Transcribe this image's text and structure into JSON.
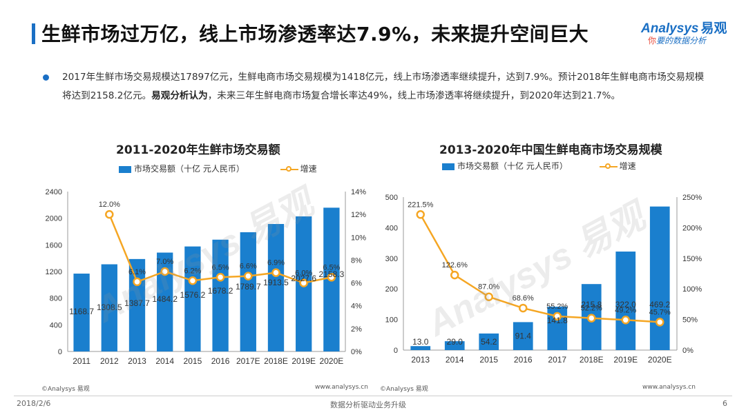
{
  "header": {
    "title": "生鲜市场过万亿，线上市场渗透率达7.9%，未来提升空间巨大",
    "logo_brand": "nalysys",
    "logo_brand_initial": "A",
    "logo_brand_cn": "易观",
    "logo_slogan_accent": "你",
    "logo_slogan": "要的数据分析"
  },
  "summary": {
    "part1": "2017年生鲜市场交易规模达17897亿元，生鲜电商市场交易规模为1418亿元，线上市场渗透率继续提升，达到7.9%。预计2018年生鲜电商市场交易规模将达到2158.2亿元。",
    "bold": "易观分析认为",
    "part2": "，未来三年生鲜电商市场复合增长率达49%，线上市场渗透率将继续提升，到2020年达到21.7%。"
  },
  "watermark": {
    "text": "Analysys 易观"
  },
  "chart_data": [
    {
      "type": "bar",
      "title": "2011-2020年生鲜市场交易额",
      "categories": [
        "2011",
        "2012",
        "2013",
        "2014",
        "2015",
        "2016",
        "2017E",
        "2018E",
        "2019E",
        "2020E"
      ],
      "series": [
        {
          "name": "市场交易额（十亿 元人民币）",
          "kind": "bar",
          "values": [
            1168.7,
            1308.5,
            1387.7,
            1484.2,
            1576.2,
            1678.2,
            1789.7,
            1913.5,
            2027.6,
            2158.3
          ],
          "labels": [
            "1168.7",
            "1308.5",
            "1387.7",
            "1484.2",
            "1576.2",
            "1678.2",
            "1789.7",
            "1913.5",
            "2027.6",
            "2158.3"
          ]
        },
        {
          "name": "增速",
          "kind": "line",
          "values": [
            null,
            12.0,
            6.1,
            7.0,
            6.2,
            6.5,
            6.6,
            6.9,
            6.0,
            6.5
          ],
          "labels": [
            "",
            "12.0%",
            "6.1%",
            "7.0%",
            "6.2%",
            "6.5%",
            "6.6%",
            "6.9%",
            "6.0%",
            "6.5%"
          ]
        }
      ],
      "ylim": [
        0,
        2400
      ],
      "yticks": [
        "0",
        "400",
        "800",
        "1200",
        "1600",
        "2000",
        "2400"
      ],
      "y2lim": [
        0,
        14
      ],
      "y2ticks": [
        "0%",
        "2%",
        "4%",
        "6%",
        "8%",
        "10%",
        "12%",
        "14%"
      ],
      "source": "©Analysys 易观",
      "url": "www.analysys.cn"
    },
    {
      "type": "bar",
      "title": "2013-2020年中国生鲜电商市场交易规模",
      "categories": [
        "2013",
        "2014",
        "2015",
        "2016",
        "2017",
        "2018E",
        "2019E",
        "2020E"
      ],
      "series": [
        {
          "name": "市场交易额（十亿 元人民币）",
          "kind": "bar",
          "values": [
            13.0,
            29.0,
            54.2,
            91.4,
            141.8,
            215.8,
            322.0,
            469.2
          ],
          "labels": [
            "13.0",
            "29.0",
            "54.2",
            "91.4",
            "141.8",
            "215.8",
            "322.0",
            "469.2"
          ]
        },
        {
          "name": "增速",
          "kind": "line",
          "values": [
            221.5,
            122.6,
            87.0,
            68.6,
            55.2,
            52.2,
            49.2,
            45.7
          ],
          "labels": [
            "221.5%",
            "122.6%",
            "87.0%",
            "68.6%",
            "55.2%",
            "52.2%",
            "49.2%",
            "45.7%"
          ]
        }
      ],
      "ylim": [
        0,
        500
      ],
      "yticks": [
        "0",
        "100",
        "200",
        "300",
        "400",
        "500"
      ],
      "y2lim": [
        0,
        250
      ],
      "y2ticks": [
        "0%",
        "50%",
        "100%",
        "150%",
        "200%",
        "250%"
      ],
      "source": "©Analysys 易观",
      "url": "www.analysys.cn"
    }
  ],
  "footer": {
    "date": "2018/2/6",
    "center": "数据分析驱动业务升级",
    "page": "6"
  },
  "colors": {
    "bar": "#1a7fce",
    "line": "#f5a623",
    "accent": "#1a6fc4"
  }
}
